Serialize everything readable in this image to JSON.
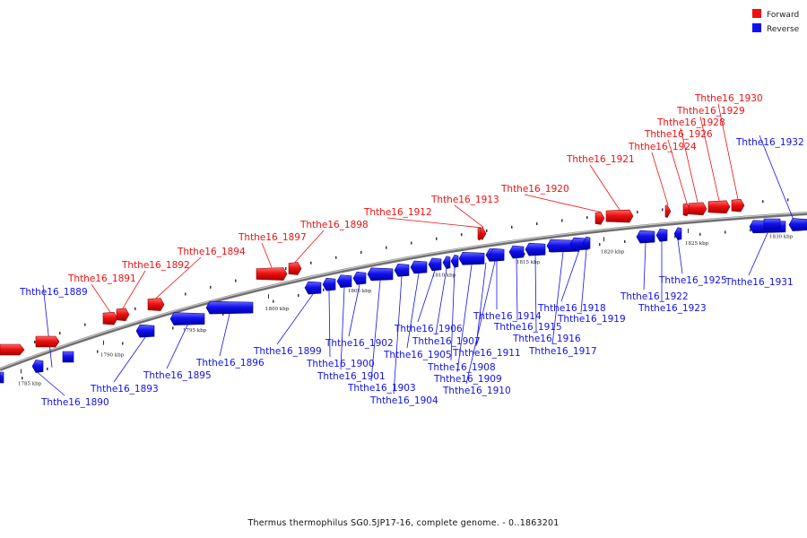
{
  "caption": "Thermus thermophilus SG0.5JP17-16, complete genome. - 0..1863201",
  "legend": [
    {
      "label": "Forward",
      "color": "#ee1111"
    },
    {
      "label": "Reverse",
      "color": "#1111ee"
    }
  ],
  "colors": {
    "forward": "#ee1111",
    "reverse": "#1111ee",
    "backbone": "#777777"
  },
  "ticks": [
    "1785 kbp",
    "1790 kbp",
    "1795 kbp",
    "1800 kbp",
    "1805 kbp",
    "1810 kbp",
    "1815 kbp",
    "1820 kbp",
    "1825 kbp",
    "1830 kbp"
  ],
  "genes": [
    {
      "name": "Ththe16_1889",
      "strand": "reverse"
    },
    {
      "name": "Ththe16_1890",
      "strand": "reverse"
    },
    {
      "name": "Ththe16_1891",
      "strand": "forward"
    },
    {
      "name": "Ththe16_1892",
      "strand": "forward"
    },
    {
      "name": "Ththe16_1893",
      "strand": "reverse"
    },
    {
      "name": "Ththe16_1894",
      "strand": "forward"
    },
    {
      "name": "Ththe16_1895",
      "strand": "reverse"
    },
    {
      "name": "Ththe16_1896",
      "strand": "reverse"
    },
    {
      "name": "Ththe16_1897",
      "strand": "forward"
    },
    {
      "name": "Ththe16_1898",
      "strand": "forward"
    },
    {
      "name": "Ththe16_1899",
      "strand": "reverse"
    },
    {
      "name": "Ththe16_1900",
      "strand": "reverse"
    },
    {
      "name": "Ththe16_1901",
      "strand": "reverse"
    },
    {
      "name": "Ththe16_1902",
      "strand": "reverse"
    },
    {
      "name": "Ththe16_1903",
      "strand": "reverse"
    },
    {
      "name": "Ththe16_1904",
      "strand": "reverse"
    },
    {
      "name": "Ththe16_1905",
      "strand": "reverse"
    },
    {
      "name": "Ththe16_1906",
      "strand": "reverse"
    },
    {
      "name": "Ththe16_1907",
      "strand": "reverse"
    },
    {
      "name": "Ththe16_1908",
      "strand": "reverse"
    },
    {
      "name": "Ththe16_1909",
      "strand": "reverse"
    },
    {
      "name": "Ththe16_1910",
      "strand": "reverse"
    },
    {
      "name": "Ththe16_1911",
      "strand": "reverse"
    },
    {
      "name": "Ththe16_1912",
      "strand": "forward"
    },
    {
      "name": "Ththe16_1913",
      "strand": "forward"
    },
    {
      "name": "Ththe16_1914",
      "strand": "reverse"
    },
    {
      "name": "Ththe16_1915",
      "strand": "reverse"
    },
    {
      "name": "Ththe16_1916",
      "strand": "reverse"
    },
    {
      "name": "Ththe16_1917",
      "strand": "reverse"
    },
    {
      "name": "Ththe16_1918",
      "strand": "reverse"
    },
    {
      "name": "Ththe16_1919",
      "strand": "reverse"
    },
    {
      "name": "Ththe16_1920",
      "strand": "forward"
    },
    {
      "name": "Ththe16_1921",
      "strand": "forward"
    },
    {
      "name": "Ththe16_1922",
      "strand": "reverse"
    },
    {
      "name": "Ththe16_1923",
      "strand": "reverse"
    },
    {
      "name": "Ththe16_1924",
      "strand": "forward"
    },
    {
      "name": "Ththe16_1925",
      "strand": "reverse"
    },
    {
      "name": "Ththe16_1926",
      "strand": "forward"
    },
    {
      "name": "Ththe16_1928",
      "strand": "forward"
    },
    {
      "name": "Ththe16_1929",
      "strand": "forward"
    },
    {
      "name": "Ththe16_1930",
      "strand": "forward"
    },
    {
      "name": "Ththe16_1931",
      "strand": "reverse"
    },
    {
      "name": "Ththe16_1932",
      "strand": "reverse"
    }
  ]
}
